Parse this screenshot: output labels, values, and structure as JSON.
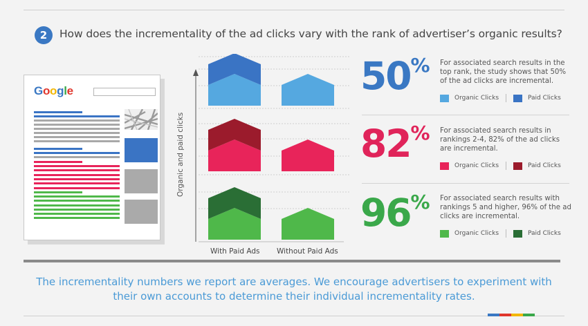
{
  "header": {
    "step_number": "2",
    "question": "How does the incrementality of the ad clicks vary with the rank of advertiser’s organic results?"
  },
  "serp": {
    "logo_letters": [
      {
        "char": "G",
        "color": "#3a78c3"
      },
      {
        "char": "o",
        "color": "#e0362c"
      },
      {
        "char": "o",
        "color": "#f2b705"
      },
      {
        "char": "g",
        "color": "#3a78c3"
      },
      {
        "char": "l",
        "color": "#3aa84a"
      },
      {
        "char": "e",
        "color": "#e0362c"
      }
    ]
  },
  "colors": {
    "blue_light": "#55a8e0",
    "blue_dark": "#3a74c4",
    "red_light": "#e8245a",
    "red_dark": "#9b1b2c",
    "green_light": "#4fb84a",
    "green_dark": "#2a6e35",
    "footnote": "#4a9ad6"
  },
  "chart_data": {
    "type": "area",
    "ylabel": "Organic and paid clicks",
    "categories": [
      "With Paid Ads",
      "Without Paid Ads"
    ],
    "panels": [
      {
        "rank": "top rank",
        "series": [
          {
            "name": "Organic Clicks",
            "values": [
              1.0,
              1.0
            ]
          },
          {
            "name": "Paid Clicks",
            "values": [
              1.0,
              0
            ]
          }
        ],
        "colors": [
          "#55a8e0",
          "#3a74c4"
        ]
      },
      {
        "rank": "rankings 2-4",
        "series": [
          {
            "name": "Organic Clicks",
            "values": [
              1.0,
              1.0
            ]
          },
          {
            "name": "Paid Clicks",
            "values": [
              1.0,
              0
            ]
          }
        ],
        "colors": [
          "#e8245a",
          "#9b1b2c"
        ]
      },
      {
        "rank": "rankings 5 and higher",
        "series": [
          {
            "name": "Organic Clicks",
            "values": [
              1.0,
              1.0
            ]
          },
          {
            "name": "Paid Clicks",
            "values": [
              1.0,
              0
            ]
          }
        ],
        "colors": [
          "#4fb84a",
          "#2a6e35"
        ]
      }
    ]
  },
  "stats": [
    {
      "value": "50",
      "unit": "%",
      "color": "#3a78c3",
      "description": "For associated search results in the top rank, the study shows that 50% of the ad clicks are incremental.",
      "legend_organic": "Organic Clicks",
      "legend_paid": "Paid Clicks",
      "swatch_organic": "#55a8e0",
      "swatch_paid": "#3a74c4"
    },
    {
      "value": "82",
      "unit": "%",
      "color": "#e0245a",
      "description": "For associated search results in rankings 2-4, 82% of the ad clicks are incremental.",
      "legend_organic": "Organic Clicks",
      "legend_paid": "Paid Clicks",
      "swatch_organic": "#e8245a",
      "swatch_paid": "#9b1b2c"
    },
    {
      "value": "96",
      "unit": "%",
      "color": "#3aa84a",
      "description": "For associated search results with rankings 5 and higher, 96% of the ad clicks are incremental.",
      "legend_organic": "Organic Clicks",
      "legend_paid": "Paid Clicks",
      "swatch_organic": "#4fb84a",
      "swatch_paid": "#2a6e35"
    }
  ],
  "footnote": "The incrementality numbers we report are averages. We encourage advertisers to experiment with their own accounts to determine their individual incrementality rates."
}
